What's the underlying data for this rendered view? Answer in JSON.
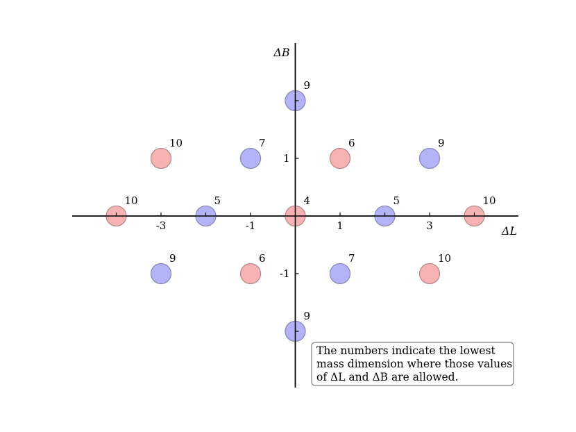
{
  "chart_data": {
    "type": "scatter",
    "title": "",
    "xlabel": "ΔL",
    "ylabel": "ΔB",
    "xlim": [
      -5,
      5
    ],
    "ylim": [
      -3,
      3
    ],
    "x_ticks": [
      -3,
      -1,
      1,
      3
    ],
    "y_ticks": [
      -1,
      1
    ],
    "grid": false,
    "colors": {
      "blue": "#b3b3f7",
      "red": "#f7b3b3"
    },
    "points": [
      {
        "x": 0,
        "y": 2,
        "label": "9",
        "color": "blue"
      },
      {
        "x": -3,
        "y": 1,
        "label": "10",
        "color": "red"
      },
      {
        "x": -1,
        "y": 1,
        "label": "7",
        "color": "blue"
      },
      {
        "x": 1,
        "y": 1,
        "label": "6",
        "color": "red"
      },
      {
        "x": 3,
        "y": 1,
        "label": "9",
        "color": "blue"
      },
      {
        "x": -4,
        "y": 0,
        "label": "10",
        "color": "red"
      },
      {
        "x": -2,
        "y": 0,
        "label": "5",
        "color": "blue"
      },
      {
        "x": 0,
        "y": 0,
        "label": "4",
        "color": "red"
      },
      {
        "x": 2,
        "y": 0,
        "label": "5",
        "color": "blue"
      },
      {
        "x": 4,
        "y": 0,
        "label": "10",
        "color": "red"
      },
      {
        "x": -3,
        "y": -1,
        "label": "9",
        "color": "blue"
      },
      {
        "x": -1,
        "y": -1,
        "label": "6",
        "color": "red"
      },
      {
        "x": 1,
        "y": -1,
        "label": "7",
        "color": "blue"
      },
      {
        "x": 3,
        "y": -1,
        "label": "10",
        "color": "red"
      },
      {
        "x": 0,
        "y": -2,
        "label": "9",
        "color": "blue"
      }
    ],
    "annotation": {
      "lines": [
        "The numbers indicate the lowest",
        "mass dimension where those values",
        "of ΔL and ΔB are allowed."
      ],
      "placement": "bottom-right"
    }
  }
}
